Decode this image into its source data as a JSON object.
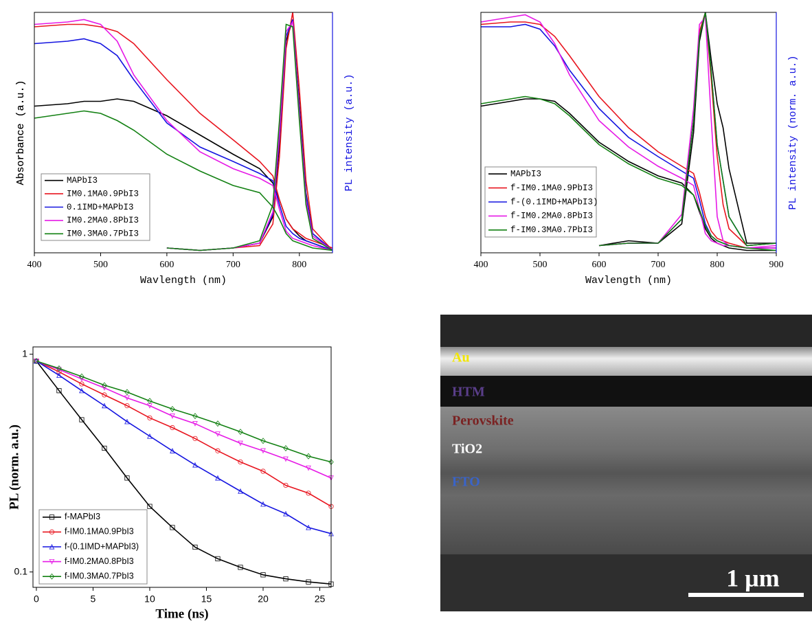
{
  "chart_data": [
    {
      "type": "line",
      "xlabel": "Wavlength (nm)",
      "ylabel": "Absorbance (a.u.)",
      "y2label": "PL intensity (a.u.)",
      "xlim": [
        400,
        850
      ],
      "xticks": [
        400,
        500,
        600,
        700,
        800
      ],
      "ylim": [
        0,
        1
      ],
      "y2lim": [
        0,
        1
      ],
      "legend": "lower left",
      "x": [
        400,
        450,
        475,
        500,
        525,
        550,
        600,
        650,
        700,
        740,
        760,
        770,
        780,
        790,
        800,
        810,
        820,
        850
      ],
      "series": [
        {
          "name": "MAPbI3",
          "color": "#000000",
          "values": [
            0.61,
            0.62,
            0.63,
            0.63,
            0.64,
            0.63,
            0.57,
            0.49,
            0.41,
            0.35,
            0.29,
            0.22,
            0.14,
            0.1,
            0.07,
            0.05,
            0.04,
            0.01
          ],
          "pl_values": [
            null,
            null,
            null,
            null,
            null,
            null,
            0.02,
            0.01,
            0.02,
            0.04,
            0.15,
            0.45,
            0.88,
            0.97,
            0.62,
            0.25,
            0.08,
            0.01
          ]
        },
        {
          "name": "IM0.1MA0.9PbI3",
          "color": "#e8141e",
          "values": [
            0.94,
            0.95,
            0.95,
            0.94,
            0.92,
            0.87,
            0.72,
            0.58,
            0.47,
            0.38,
            0.32,
            0.22,
            0.14,
            0.1,
            0.08,
            0.06,
            0.05,
            0.02
          ],
          "pl_values": [
            null,
            null,
            null,
            null,
            null,
            null,
            0.02,
            0.01,
            0.02,
            0.03,
            0.12,
            0.4,
            0.85,
            1.0,
            0.68,
            0.3,
            0.1,
            0.01
          ]
        },
        {
          "name": "0.1IMD+MAPbI3",
          "color": "#1414e0",
          "values": [
            0.87,
            0.88,
            0.89,
            0.87,
            0.82,
            0.72,
            0.54,
            0.44,
            0.38,
            0.33,
            0.3,
            0.2,
            0.11,
            0.08,
            0.06,
            0.05,
            0.04,
            0.01
          ],
          "pl_values": [
            null,
            null,
            null,
            null,
            null,
            null,
            0.02,
            0.01,
            0.02,
            0.04,
            0.16,
            0.48,
            0.9,
            0.97,
            0.6,
            0.24,
            0.08,
            0.01
          ]
        },
        {
          "name": "IM0.2MA0.8PbI3",
          "color": "#e619e6",
          "values": [
            0.95,
            0.96,
            0.97,
            0.95,
            0.88,
            0.74,
            0.55,
            0.42,
            0.35,
            0.31,
            0.28,
            0.18,
            0.09,
            0.06,
            0.05,
            0.04,
            0.03,
            0.01
          ],
          "pl_values": [
            null,
            null,
            null,
            null,
            null,
            null,
            0.02,
            0.01,
            0.02,
            0.04,
            0.17,
            0.5,
            0.92,
            0.96,
            0.58,
            0.22,
            0.07,
            0.01
          ]
        },
        {
          "name": "IM0.3MA0.7PbI3",
          "color": "#128012",
          "values": [
            0.56,
            0.58,
            0.59,
            0.58,
            0.55,
            0.51,
            0.41,
            0.34,
            0.28,
            0.25,
            0.19,
            0.14,
            0.08,
            0.05,
            0.04,
            0.03,
            0.02,
            0.01
          ],
          "pl_values": [
            null,
            null,
            null,
            null,
            null,
            null,
            0.02,
            0.01,
            0.02,
            0.05,
            0.2,
            0.55,
            0.95,
            0.94,
            0.55,
            0.2,
            0.06,
            0.01
          ]
        }
      ]
    },
    {
      "type": "line",
      "xlabel": "Wavlength (nm)",
      "ylabel": "Absorbance (a.u.)",
      "y2label": "PL intensity (norm. a.u.)",
      "xlim": [
        400,
        900
      ],
      "xticks": [
        400,
        500,
        600,
        700,
        800,
        900
      ],
      "ylim": [
        0,
        1
      ],
      "y2lim": [
        0,
        1
      ],
      "legend": "lower left",
      "x": [
        400,
        450,
        475,
        500,
        525,
        550,
        600,
        650,
        700,
        740,
        760,
        770,
        780,
        790,
        800,
        810,
        820,
        850,
        900
      ],
      "series": [
        {
          "name": "MAPbI3",
          "color": "#000000",
          "values": [
            0.61,
            0.63,
            0.64,
            0.64,
            0.63,
            0.58,
            0.46,
            0.38,
            0.32,
            0.29,
            0.24,
            0.17,
            0.1,
            0.06,
            0.04,
            0.03,
            0.02,
            0.01,
            0.01
          ],
          "pl_values": [
            null,
            null,
            null,
            null,
            null,
            null,
            0.03,
            0.05,
            0.04,
            0.12,
            0.5,
            0.88,
            1.0,
            0.8,
            0.62,
            0.52,
            0.35,
            0.04,
            0.04
          ]
        },
        {
          "name": "f-IM0.1MA0.9PbI3",
          "color": "#e8141e",
          "values": [
            0.95,
            0.96,
            0.96,
            0.95,
            0.9,
            0.82,
            0.65,
            0.52,
            0.42,
            0.36,
            0.33,
            0.25,
            0.15,
            0.09,
            0.06,
            0.05,
            0.04,
            0.02,
            0.02
          ],
          "pl_values": [
            null,
            null,
            null,
            null,
            null,
            null,
            0.03,
            0.04,
            0.04,
            0.14,
            0.55,
            0.92,
            1.0,
            0.72,
            0.4,
            0.2,
            0.1,
            0.03,
            0.04
          ]
        },
        {
          "name": "f-(0.1IMD+MAPbI3)",
          "color": "#1414e0",
          "values": [
            0.94,
            0.94,
            0.95,
            0.93,
            0.86,
            0.76,
            0.6,
            0.48,
            0.4,
            0.34,
            0.31,
            0.22,
            0.12,
            0.07,
            0.05,
            0.04,
            0.03,
            0.02,
            0.02
          ],
          "pl_values": [
            null,
            null,
            null,
            null,
            null,
            null,
            0.03,
            0.04,
            0.04,
            0.14,
            0.55,
            0.9,
            1.0,
            0.75,
            0.45,
            0.3,
            0.15,
            0.03,
            0.04
          ]
        },
        {
          "name": "f-IM0.2MA0.8PbI3",
          "color": "#e619e6",
          "values": [
            0.96,
            0.98,
            0.99,
            0.96,
            0.87,
            0.74,
            0.55,
            0.44,
            0.36,
            0.31,
            0.28,
            0.18,
            0.08,
            0.05,
            0.04,
            0.03,
            0.03,
            0.02,
            0.02
          ],
          "pl_values": [
            null,
            null,
            null,
            null,
            null,
            null,
            0.03,
            0.04,
            0.04,
            0.16,
            0.6,
            0.95,
            0.98,
            0.55,
            0.15,
            0.05,
            0.03,
            0.02,
            0.03
          ]
        },
        {
          "name": "f-IM0.3MA0.7PbI3",
          "color": "#128012",
          "values": [
            0.62,
            0.64,
            0.65,
            0.64,
            0.62,
            0.57,
            0.45,
            0.37,
            0.31,
            0.28,
            0.24,
            0.18,
            0.11,
            0.07,
            0.05,
            0.04,
            0.03,
            0.02,
            0.01
          ],
          "pl_values": [
            null,
            null,
            null,
            null,
            null,
            null,
            0.03,
            0.04,
            0.04,
            0.14,
            0.55,
            0.9,
            1.0,
            0.75,
            0.45,
            0.3,
            0.15,
            0.03,
            0.04
          ]
        }
      ]
    },
    {
      "type": "scatter",
      "xlabel": "Time (ns)",
      "ylabel": "PL (norm. a.u.)",
      "log_y": true,
      "xlim": [
        -0.3,
        26
      ],
      "xticks": [
        0,
        5,
        10,
        15,
        20,
        25
      ],
      "ylim": [
        0.085,
        1.08
      ],
      "yticks": [
        0.1,
        1
      ],
      "legend": "lower left",
      "x": [
        0,
        2,
        4,
        6,
        8,
        10,
        12,
        14,
        16,
        18,
        20,
        22,
        24,
        26
      ],
      "series": [
        {
          "name": "f-MAPbI3",
          "color": "#000000",
          "marker": "square",
          "values": [
            0.93,
            0.68,
            0.5,
            0.37,
            0.27,
            0.2,
            0.16,
            0.13,
            0.115,
            0.105,
            0.097,
            0.093,
            0.09,
            0.088
          ]
        },
        {
          "name": "f-IM0.1MA0.9PbI3",
          "color": "#e8141e",
          "marker": "circle",
          "values": [
            0.93,
            0.83,
            0.73,
            0.65,
            0.58,
            0.51,
            0.46,
            0.41,
            0.36,
            0.32,
            0.29,
            0.25,
            0.23,
            0.2
          ]
        },
        {
          "name": "f-(0.1IMD+MAPbI3)",
          "color": "#1414e0",
          "marker": "triangle",
          "values": [
            0.93,
            0.8,
            0.68,
            0.58,
            0.49,
            0.42,
            0.36,
            0.31,
            0.27,
            0.235,
            0.205,
            0.185,
            0.16,
            0.15
          ]
        },
        {
          "name": "f-IM0.2MA0.8PbI3",
          "color": "#e619e6",
          "marker": "down-triangle",
          "values": [
            0.93,
            0.85,
            0.77,
            0.7,
            0.63,
            0.58,
            0.52,
            0.48,
            0.43,
            0.39,
            0.36,
            0.33,
            0.3,
            0.27
          ]
        },
        {
          "name": "f-IM0.3MA0.7PbI3",
          "color": "#128012",
          "marker": "diamond",
          "values": [
            0.93,
            0.86,
            0.79,
            0.72,
            0.67,
            0.61,
            0.56,
            0.52,
            0.48,
            0.44,
            0.4,
            0.37,
            0.34,
            0.32
          ]
        }
      ]
    }
  ],
  "image_panel": {
    "layers": [
      {
        "label": "Au",
        "color": "#f2e600"
      },
      {
        "label": "HTM",
        "color": "#5a3e8a"
      },
      {
        "label": "Perovskite",
        "color": "#7a2222"
      },
      {
        "label": "TiO2",
        "color": "#ffffff"
      },
      {
        "label": "FTO",
        "color": "#3a64c8"
      }
    ],
    "scale_bar": "1 μm"
  }
}
